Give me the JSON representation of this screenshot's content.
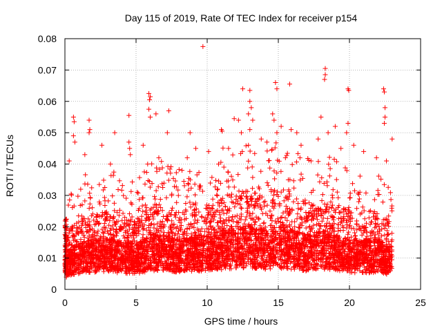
{
  "chart_data": {
    "type": "scatter",
    "title": "Day 115 of 2019, Rate Of TEC Index for receiver p154",
    "xlabel": "GPS time / hours",
    "ylabel": "ROTI / TECUs",
    "xlim": [
      0,
      25
    ],
    "ylim": [
      0,
      0.08
    ],
    "x_ticks": [
      0,
      5,
      10,
      15,
      20,
      25
    ],
    "y_ticks": [
      0,
      0.01,
      0.02,
      0.03,
      0.04,
      0.05,
      0.06,
      0.07,
      0.08
    ],
    "x_tick_labels": [
      "0",
      "5",
      "10",
      "15",
      "20",
      "25"
    ],
    "y_tick_labels": [
      "0",
      "0.01",
      "0.02",
      "0.03",
      "0.04",
      "0.05",
      "0.06",
      "0.07",
      "0.08"
    ],
    "grid": true,
    "marker": "+",
    "color": "#ff0000",
    "density_profile": [
      {
        "x": 0.0,
        "y": 0.0085
      },
      {
        "x": 1.0,
        "y": 0.011
      },
      {
        "x": 2.0,
        "y": 0.012
      },
      {
        "x": 3.0,
        "y": 0.012
      },
      {
        "x": 4.0,
        "y": 0.0115
      },
      {
        "x": 5.0,
        "y": 0.011
      },
      {
        "x": 6.0,
        "y": 0.013
      },
      {
        "x": 7.0,
        "y": 0.013
      },
      {
        "x": 8.0,
        "y": 0.012
      },
      {
        "x": 9.0,
        "y": 0.0125
      },
      {
        "x": 10.0,
        "y": 0.013
      },
      {
        "x": 11.0,
        "y": 0.014
      },
      {
        "x": 12.0,
        "y": 0.015
      },
      {
        "x": 13.0,
        "y": 0.015
      },
      {
        "x": 14.0,
        "y": 0.014
      },
      {
        "x": 15.0,
        "y": 0.015
      },
      {
        "x": 16.0,
        "y": 0.014
      },
      {
        "x": 17.0,
        "y": 0.013
      },
      {
        "x": 18.0,
        "y": 0.014
      },
      {
        "x": 19.0,
        "y": 0.013
      },
      {
        "x": 20.0,
        "y": 0.012
      },
      {
        "x": 21.0,
        "y": 0.0115
      },
      {
        "x": 22.0,
        "y": 0.012
      },
      {
        "x": 23.0,
        "y": 0.01
      }
    ],
    "points": [
      {
        "x": 9.7,
        "y": 0.0775
      },
      {
        "x": 18.3,
        "y": 0.0705
      },
      {
        "x": 18.3,
        "y": 0.0685
      },
      {
        "x": 18.25,
        "y": 0.067
      },
      {
        "x": 14.8,
        "y": 0.066
      },
      {
        "x": 14.9,
        "y": 0.064
      },
      {
        "x": 15.8,
        "y": 0.0655
      },
      {
        "x": 12.5,
        "y": 0.064
      },
      {
        "x": 13.0,
        "y": 0.0635
      },
      {
        "x": 19.9,
        "y": 0.064
      },
      {
        "x": 19.95,
        "y": 0.0635
      },
      {
        "x": 22.4,
        "y": 0.064
      },
      {
        "x": 22.45,
        "y": 0.063
      },
      {
        "x": 22.5,
        "y": 0.058
      },
      {
        "x": 22.5,
        "y": 0.055
      },
      {
        "x": 22.45,
        "y": 0.053
      },
      {
        "x": 5.9,
        "y": 0.0625
      },
      {
        "x": 6.0,
        "y": 0.0615
      },
      {
        "x": 5.95,
        "y": 0.0605
      },
      {
        "x": 5.9,
        "y": 0.0575
      },
      {
        "x": 6.0,
        "y": 0.055
      },
      {
        "x": 13.0,
        "y": 0.06
      },
      {
        "x": 13.1,
        "y": 0.058
      },
      {
        "x": 12.9,
        "y": 0.056
      },
      {
        "x": 13.2,
        "y": 0.054
      },
      {
        "x": 13.0,
        "y": 0.051
      },
      {
        "x": 7.3,
        "y": 0.057
      },
      {
        "x": 6.4,
        "y": 0.056
      },
      {
        "x": 4.5,
        "y": 0.0555
      },
      {
        "x": 0.6,
        "y": 0.055
      },
      {
        "x": 0.65,
        "y": 0.0535
      },
      {
        "x": 0.6,
        "y": 0.049
      },
      {
        "x": 0.7,
        "y": 0.047
      },
      {
        "x": 1.7,
        "y": 0.054
      },
      {
        "x": 1.75,
        "y": 0.051
      },
      {
        "x": 1.7,
        "y": 0.05
      },
      {
        "x": 11.9,
        "y": 0.0545
      },
      {
        "x": 12.2,
        "y": 0.054
      },
      {
        "x": 11.0,
        "y": 0.051
      },
      {
        "x": 11.05,
        "y": 0.0505
      },
      {
        "x": 12.4,
        "y": 0.05
      },
      {
        "x": 14.6,
        "y": 0.056
      },
      {
        "x": 14.7,
        "y": 0.054
      },
      {
        "x": 15.2,
        "y": 0.052
      },
      {
        "x": 14.9,
        "y": 0.05
      },
      {
        "x": 18.0,
        "y": 0.055
      },
      {
        "x": 18.5,
        "y": 0.05
      },
      {
        "x": 19.0,
        "y": 0.052
      },
      {
        "x": 19.9,
        "y": 0.053
      },
      {
        "x": 19.8,
        "y": 0.05
      },
      {
        "x": 15.9,
        "y": 0.051
      },
      {
        "x": 16.3,
        "y": 0.05
      },
      {
        "x": 3.5,
        "y": 0.05
      },
      {
        "x": 4.5,
        "y": 0.047
      },
      {
        "x": 4.55,
        "y": 0.045
      },
      {
        "x": 8.8,
        "y": 0.05
      },
      {
        "x": 7.2,
        "y": 0.05
      },
      {
        "x": 23.0,
        "y": 0.048
      },
      {
        "x": 20.3,
        "y": 0.046
      },
      {
        "x": 13.8,
        "y": 0.048
      },
      {
        "x": 14.2,
        "y": 0.047
      },
      {
        "x": 17.8,
        "y": 0.048
      },
      {
        "x": 16.6,
        "y": 0.046
      },
      {
        "x": 2.6,
        "y": 0.046
      },
      {
        "x": 5.5,
        "y": 0.046
      },
      {
        "x": 9.2,
        "y": 0.045
      },
      {
        "x": 10.1,
        "y": 0.044
      },
      {
        "x": 11.5,
        "y": 0.045
      },
      {
        "x": 12.9,
        "y": 0.046
      },
      {
        "x": 21.0,
        "y": 0.044
      },
      {
        "x": 19.4,
        "y": 0.045
      },
      {
        "x": 1.4,
        "y": 0.043
      },
      {
        "x": 4.6,
        "y": 0.043
      },
      {
        "x": 6.6,
        "y": 0.042
      },
      {
        "x": 8.6,
        "y": 0.042
      },
      {
        "x": 21.9,
        "y": 0.042
      },
      {
        "x": 22.6,
        "y": 0.041
      },
      {
        "x": 0.3,
        "y": 0.041
      },
      {
        "x": 15.5,
        "y": 0.042
      },
      {
        "x": 17.3,
        "y": 0.041
      },
      {
        "x": 3.2,
        "y": 0.04
      },
      {
        "x": 10.8,
        "y": 0.04
      }
    ]
  }
}
